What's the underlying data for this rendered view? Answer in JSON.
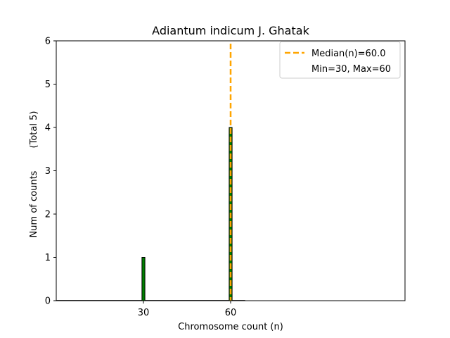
{
  "chart_data": {
    "type": "bar",
    "title": "Adiantum indicum J. Ghatak",
    "xlabel": "Chromosome count (n)",
    "ylabel": "Num of counts",
    "ylabel_note": "(Total 5)",
    "xlim": [
      0,
      120
    ],
    "ylim": [
      0,
      6
    ],
    "xticks": [
      30,
      60
    ],
    "yticks": [
      0,
      1,
      2,
      3,
      4,
      5,
      6
    ],
    "grid": false,
    "legend_position": "top-right",
    "bars": [
      {
        "x": 30,
        "value": 1
      },
      {
        "x": 60,
        "value": 4
      }
    ],
    "median": 60.0,
    "legend": [
      {
        "label": "Median(n)=60.0",
        "style": "dashed"
      },
      {
        "label": "Min=30, Max=60",
        "style": "none"
      }
    ],
    "colors": {
      "bar_fill": "#008000",
      "bar_edge": "#000000",
      "median_line": "#FFA500"
    }
  }
}
